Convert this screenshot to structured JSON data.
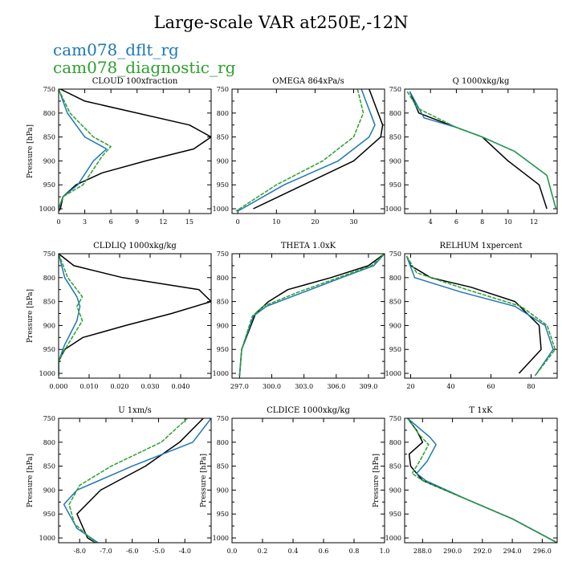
{
  "title": "Large-scale VAR at250E,-12N",
  "legend": [
    {
      "label": "cam078_dflt_rg",
      "color": "#1f77b4"
    },
    {
      "label": "cam078_diagnostic_rg",
      "color": "#2ca02c"
    }
  ],
  "colors": {
    "black": "#000000",
    "blue": "#1f77b4",
    "green": "#2ca02c"
  },
  "chart_data": [
    {
      "type": "line",
      "title": "CLOUD 100xfraction",
      "ylabel": "Pressure [hPa]",
      "ylim": [
        1010,
        750
      ],
      "yticks": [
        750,
        800,
        850,
        900,
        950,
        1000
      ],
      "xlim": [
        0,
        17.5
      ],
      "xticks": [
        0,
        3,
        6,
        9,
        12,
        15
      ],
      "xtick_labels": [
        "0",
        "3",
        "6",
        "9",
        "12",
        "15"
      ],
      "series": [
        {
          "color": "black",
          "points": [
            [
              0.2,
              750
            ],
            [
              3,
              775
            ],
            [
              15,
              825
            ],
            [
              17.5,
              850
            ],
            [
              15.5,
              875
            ],
            [
              10,
              900
            ],
            [
              5,
              925
            ],
            [
              2,
              950
            ],
            [
              0.5,
              975
            ],
            [
              0.2,
              1000
            ],
            [
              0,
              1005
            ]
          ]
        },
        {
          "color": "blue",
          "points": [
            [
              0,
              750
            ],
            [
              1,
              800
            ],
            [
              3,
              850
            ],
            [
              5.5,
              875
            ],
            [
              4,
              900
            ],
            [
              2.2,
              950
            ],
            [
              0.5,
              975
            ],
            [
              0,
              1000
            ],
            [
              0,
              1005
            ]
          ]
        },
        {
          "color": "green",
          "points": [
            [
              0,
              750
            ],
            [
              1.3,
              800
            ],
            [
              4,
              850
            ],
            [
              6,
              870
            ],
            [
              5,
              890
            ],
            [
              2.8,
              950
            ],
            [
              0.5,
              975
            ],
            [
              0,
              1000
            ],
            [
              0,
              1005
            ]
          ],
          "dashed": true
        }
      ]
    },
    {
      "type": "line",
      "title": "OMEGA 864xPa/s",
      "ylabel": "",
      "ylim": [
        1010,
        750
      ],
      "yticks": [
        750,
        800,
        850,
        900,
        950,
        1000
      ],
      "xlim": [
        -1.5,
        38
      ],
      "xticks": [
        0,
        10,
        20,
        30
      ],
      "xtick_labels": [
        "0",
        "10",
        "20",
        "30"
      ],
      "series": [
        {
          "color": "black",
          "points": [
            [
              34,
              750
            ],
            [
              37.5,
              825
            ],
            [
              37,
              850
            ],
            [
              30,
              900
            ],
            [
              17,
              950
            ],
            [
              4,
              1000
            ]
          ]
        },
        {
          "color": "blue",
          "points": [
            [
              32,
              750
            ],
            [
              35.5,
              825
            ],
            [
              34,
              850
            ],
            [
              26,
              900
            ],
            [
              12,
              950
            ],
            [
              0,
              1005
            ]
          ]
        },
        {
          "color": "green",
          "points": [
            [
              31,
              750
            ],
            [
              32.5,
              800
            ],
            [
              30,
              850
            ],
            [
              22,
              900
            ],
            [
              10,
              950
            ],
            [
              -0.5,
              1005
            ]
          ],
          "dashed": true
        }
      ]
    },
    {
      "type": "line",
      "title": "Q 1000xkg/kg",
      "ylabel": "",
      "ylim": [
        1010,
        750
      ],
      "yticks": [
        750,
        800,
        850,
        900,
        950,
        1000
      ],
      "xlim": [
        2,
        13.8
      ],
      "xticks": [
        4,
        6,
        8,
        10,
        12
      ],
      "xtick_labels": [
        "4",
        "6",
        "8",
        "10",
        "12"
      ],
      "series": [
        {
          "color": "black",
          "points": [
            [
              2.4,
              755
            ],
            [
              3.1,
              800
            ],
            [
              5.5,
              825
            ],
            [
              8,
              850
            ],
            [
              10,
              900
            ],
            [
              12.4,
              950
            ],
            [
              13,
              1000
            ]
          ]
        },
        {
          "color": "blue",
          "points": [
            [
              2.4,
              755
            ],
            [
              3.5,
              810
            ],
            [
              6,
              830
            ],
            [
              8,
              850
            ],
            [
              10.5,
              880
            ],
            [
              13,
              930
            ],
            [
              13.7,
              1000
            ]
          ]
        },
        {
          "color": "green",
          "points": [
            [
              2.2,
              755
            ],
            [
              3,
              790
            ],
            [
              6,
              830
            ],
            [
              8,
              850
            ],
            [
              10.5,
              880
            ],
            [
              13,
              930
            ],
            [
              13.7,
              1000
            ]
          ],
          "dashed": true
        }
      ]
    },
    {
      "type": "line",
      "title": "CLDLIQ 1000xkg/kg",
      "ylabel": "Pressure [hPa]",
      "ylim": [
        1010,
        750
      ],
      "yticks": [
        750,
        800,
        850,
        900,
        950,
        1000
      ],
      "xlim": [
        0,
        0.05
      ],
      "xticks": [
        0,
        0.01,
        0.02,
        0.03,
        0.04
      ],
      "xtick_labels": [
        "0.000",
        "0.010",
        "0.020",
        "0.030",
        "0.040"
      ],
      "series": [
        {
          "color": "black",
          "points": [
            [
              0,
              750
            ],
            [
              0.005,
              775
            ],
            [
              0.021,
              800
            ],
            [
              0.046,
              825
            ],
            [
              0.05,
              850
            ],
            [
              0.037,
              875
            ],
            [
              0.022,
              900
            ],
            [
              0.008,
              925
            ],
            [
              0.002,
              950
            ],
            [
              0,
              975
            ],
            [
              0,
              1005
            ]
          ]
        },
        {
          "color": "blue",
          "points": [
            [
              0,
              750
            ],
            [
              0.002,
              800
            ],
            [
              0.006,
              840
            ],
            [
              0.007,
              860
            ],
            [
              0.006,
              890
            ],
            [
              0.002,
              940
            ],
            [
              0,
              975
            ],
            [
              0,
              1005
            ]
          ]
        },
        {
          "color": "green",
          "points": [
            [
              0,
              750
            ],
            [
              0.003,
              800
            ],
            [
              0.0078,
              840
            ],
            [
              0.006,
              860
            ],
            [
              0.0078,
              890
            ],
            [
              0.003,
              940
            ],
            [
              0,
              975
            ],
            [
              0,
              1005
            ]
          ],
          "dashed": true
        }
      ]
    },
    {
      "type": "line",
      "title": "THETA 1.0xK",
      "ylabel": "",
      "ylim": [
        1010,
        750
      ],
      "yticks": [
        750,
        800,
        850,
        900,
        950,
        1000
      ],
      "xlim": [
        296.3,
        310.5
      ],
      "xticks": [
        297,
        300,
        303,
        306,
        309
      ],
      "xtick_labels": [
        "297.0",
        "300.0",
        "303.0",
        "306.0",
        "309.0"
      ],
      "series": [
        {
          "color": "black",
          "points": [
            [
              310.5,
              750
            ],
            [
              309,
              775
            ],
            [
              305.5,
              800
            ],
            [
              301.5,
              825
            ],
            [
              299.7,
              850
            ],
            [
              298.5,
              875
            ],
            [
              297.2,
              950
            ],
            [
              297,
              1005
            ]
          ]
        },
        {
          "color": "blue",
          "points": [
            [
              310.5,
              750
            ],
            [
              309.5,
              775
            ],
            [
              306.5,
              800
            ],
            [
              303,
              830
            ],
            [
              299.5,
              860
            ],
            [
              298.3,
              880
            ],
            [
              297.2,
              950
            ],
            [
              297,
              1005
            ]
          ]
        },
        {
          "color": "green",
          "points": [
            [
              310.5,
              750
            ],
            [
              309.3,
              775
            ],
            [
              306.2,
              800
            ],
            [
              302.5,
              830
            ],
            [
              299.2,
              860
            ],
            [
              298.2,
              880
            ],
            [
              297.2,
              950
            ],
            [
              297,
              1005
            ]
          ],
          "dashed": true
        }
      ]
    },
    {
      "type": "line",
      "title": "RELHUM 1xpercent",
      "ylabel": "",
      "ylim": [
        1010,
        750
      ],
      "yticks": [
        750,
        800,
        850,
        900,
        950,
        1000
      ],
      "xlim": [
        17,
        93
      ],
      "xticks": [
        20,
        40,
        60,
        80
      ],
      "xtick_labels": [
        "20",
        "40",
        "60",
        "80"
      ],
      "series": [
        {
          "color": "black",
          "points": [
            [
              18,
              755
            ],
            [
              20,
              775
            ],
            [
              30,
              800
            ],
            [
              50,
              820
            ],
            [
              72,
              850
            ],
            [
              84,
              900
            ],
            [
              85,
              950
            ],
            [
              74,
              1000
            ]
          ]
        },
        {
          "color": "blue",
          "points": [
            [
              18,
              755
            ],
            [
              22,
              800
            ],
            [
              45,
              830
            ],
            [
              72,
              860
            ],
            [
              87,
              900
            ],
            [
              91,
              950
            ],
            [
              82,
              1005
            ]
          ]
        },
        {
          "color": "green",
          "points": [
            [
              18,
              755
            ],
            [
              23,
              790
            ],
            [
              48,
              825
            ],
            [
              75,
              860
            ],
            [
              88,
              900
            ],
            [
              92,
              950
            ],
            [
              82,
              1005
            ]
          ],
          "dashed": true
        }
      ]
    },
    {
      "type": "line",
      "title": "U 1xm/s",
      "ylabel": "Pressure [hPa]",
      "ylim": [
        1010,
        750
      ],
      "yticks": [
        750,
        800,
        850,
        900,
        950,
        1000
      ],
      "xlim": [
        -8.8,
        -3.0
      ],
      "xticks": [
        -8,
        -7,
        -6,
        -5,
        -4
      ],
      "xtick_labels": [
        "-8.0",
        "-7.0",
        "-6.0",
        "-5.0",
        "-4.0"
      ],
      "series": [
        {
          "color": "black",
          "points": [
            [
              -3.3,
              750
            ],
            [
              -4.2,
              800
            ],
            [
              -5.5,
              850
            ],
            [
              -7.2,
              900
            ],
            [
              -8.1,
              950
            ],
            [
              -7.7,
              1000
            ],
            [
              -7.4,
              1010
            ]
          ]
        },
        {
          "color": "blue",
          "points": [
            [
              -3.0,
              750
            ],
            [
              -3.7,
              800
            ],
            [
              -6.0,
              850
            ],
            [
              -8.1,
              900
            ],
            [
              -8.6,
              930
            ],
            [
              -8.1,
              980
            ],
            [
              -7.3,
              1010
            ]
          ]
        },
        {
          "color": "green",
          "points": [
            [
              -3.9,
              750
            ],
            [
              -4.9,
              800
            ],
            [
              -6.8,
              850
            ],
            [
              -8.0,
              890
            ],
            [
              -8.4,
              930
            ],
            [
              -8.2,
              970
            ],
            [
              -7.4,
              1010
            ]
          ],
          "dashed": true
        }
      ]
    },
    {
      "type": "line",
      "title": "CLDICE 1000xkg/kg",
      "ylabel": "Pressure [hPa]",
      "ylim": [
        1010,
        750
      ],
      "yticks": [
        750,
        800,
        850,
        900,
        950,
        1000
      ],
      "xlim": [
        0,
        1
      ],
      "xticks": [
        0,
        0.2,
        0.4,
        0.6,
        0.8,
        1.0
      ],
      "xtick_labels": [
        "0.0",
        "0.2",
        "0.4",
        "0.6",
        "0.8",
        "1.0"
      ],
      "series": []
    },
    {
      "type": "line",
      "title": "T 1xK",
      "ylabel": "Pressure [hPa]",
      "ylim": [
        1010,
        750
      ],
      "yticks": [
        750,
        800,
        850,
        900,
        950,
        1000
      ],
      "xlim": [
        286.8,
        297
      ],
      "xticks": [
        288,
        290,
        292,
        294,
        296
      ],
      "xtick_labels": [
        "288.0",
        "290.0",
        "292.0",
        "294.0",
        "296.0"
      ],
      "series": [
        {
          "color": "black",
          "points": [
            [
              287,
              750
            ],
            [
              287.6,
              775
            ],
            [
              288,
              800
            ],
            [
              287.1,
              825
            ],
            [
              287.2,
              850
            ],
            [
              288,
              880
            ],
            [
              291,
              920
            ],
            [
              294,
              960
            ],
            [
              297,
              1010
            ]
          ]
        },
        {
          "color": "blue",
          "points": [
            [
              287,
              750
            ],
            [
              288.5,
              790
            ],
            [
              288.9,
              805
            ],
            [
              288.3,
              840
            ],
            [
              287.6,
              865
            ],
            [
              288.2,
              880
            ],
            [
              291,
              920
            ],
            [
              294,
              960
            ],
            [
              297,
              1010
            ]
          ]
        },
        {
          "color": "green",
          "points": [
            [
              287,
              750
            ],
            [
              287.8,
              785
            ],
            [
              288.4,
              805
            ],
            [
              287.8,
              840
            ],
            [
              287.3,
              865
            ],
            [
              288,
              880
            ],
            [
              291,
              920
            ],
            [
              294,
              960
            ],
            [
              297,
              1010
            ]
          ],
          "dashed": true
        }
      ]
    }
  ]
}
